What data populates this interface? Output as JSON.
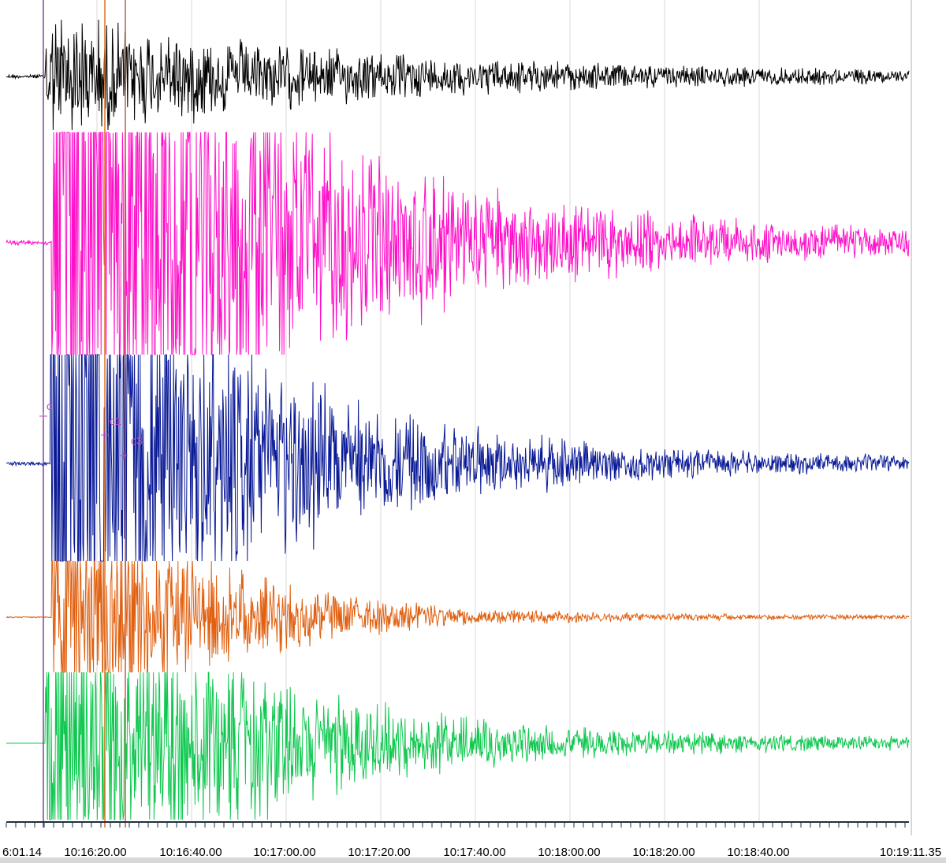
{
  "time_axis": {
    "labels": [
      "6:01.14",
      "10:16:20.00",
      "10:16:40.00",
      "10:17:00.00",
      "10:17:20.00",
      "10:17:40.00",
      "10:18:00.00",
      "10:18:20.00",
      "10:18:40.00",
      "10:19:11.35"
    ]
  },
  "markers": [
    {
      "label": "c"
    },
    {
      "label": "c1"
    },
    {
      "label": "c3"
    }
  ]
}
